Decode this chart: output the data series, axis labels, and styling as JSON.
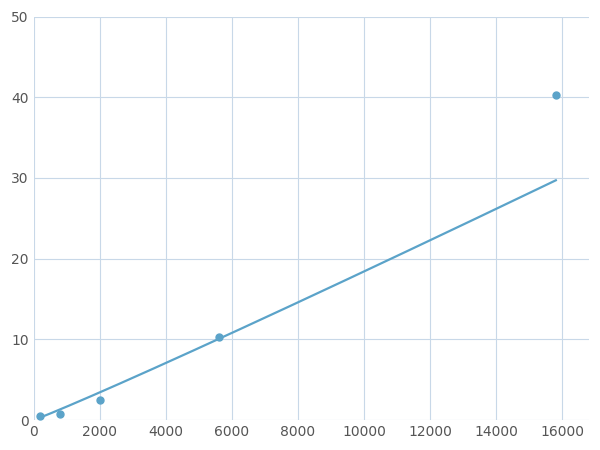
{
  "x": [
    200,
    800,
    2000,
    5600,
    15800
  ],
  "y": [
    0.5,
    0.8,
    2.5,
    10.3,
    40.3
  ],
  "line_color": "#5ba3c9",
  "marker_color": "#5ba3c9",
  "marker_size": 5,
  "marker_style": "o",
  "line_width": 1.6,
  "xlim": [
    0,
    16800
  ],
  "ylim": [
    0,
    50
  ],
  "xticks": [
    0,
    2000,
    4000,
    6000,
    8000,
    10000,
    12000,
    14000,
    16000
  ],
  "yticks": [
    0,
    10,
    20,
    30,
    40,
    50
  ],
  "grid_color": "#c8d8e8",
  "grid_linewidth": 0.8,
  "background_color": "#ffffff",
  "figsize": [
    6.0,
    4.5
  ],
  "dpi": 100
}
